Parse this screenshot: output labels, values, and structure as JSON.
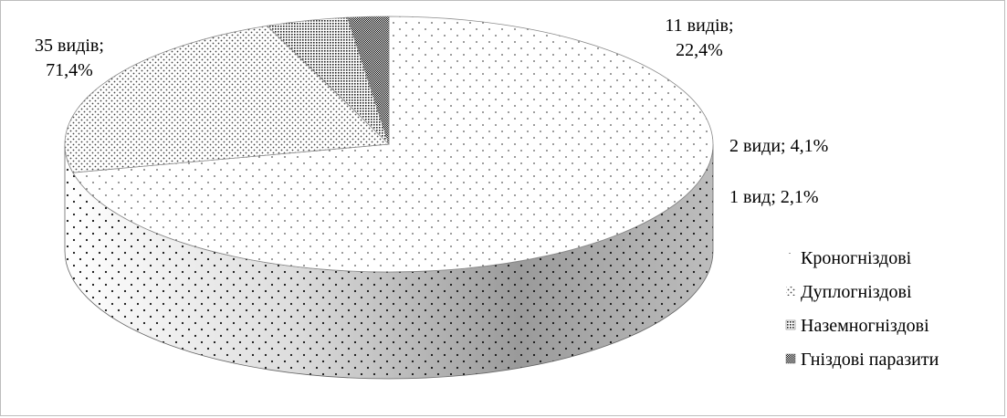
{
  "chart_data": {
    "type": "pie",
    "style": "3d",
    "categories": [
      "Кроногніздові",
      "Дуплогніздові",
      "Наземногніздові",
      "Гніздові паразити"
    ],
    "values": [
      35,
      11,
      2,
      1
    ],
    "percent": [
      71.4,
      22.4,
      4.1,
      2.1
    ],
    "data_labels": [
      [
        "35 видів;",
        "71,4%"
      ],
      [
        "11 видів;",
        "22,4%"
      ],
      [
        "2 види; 4,1%"
      ],
      [
        "1 вид; 2,1%"
      ]
    ],
    "legend": {
      "position": "right",
      "entries": [
        "Кроногніздові",
        "Дуплогніздові",
        "Наземногніздові",
        "Гніздові паразити"
      ]
    },
    "patterns": [
      "sparse-dots",
      "fine-dots",
      "dense-crosshatch",
      "dense-checker"
    ]
  }
}
